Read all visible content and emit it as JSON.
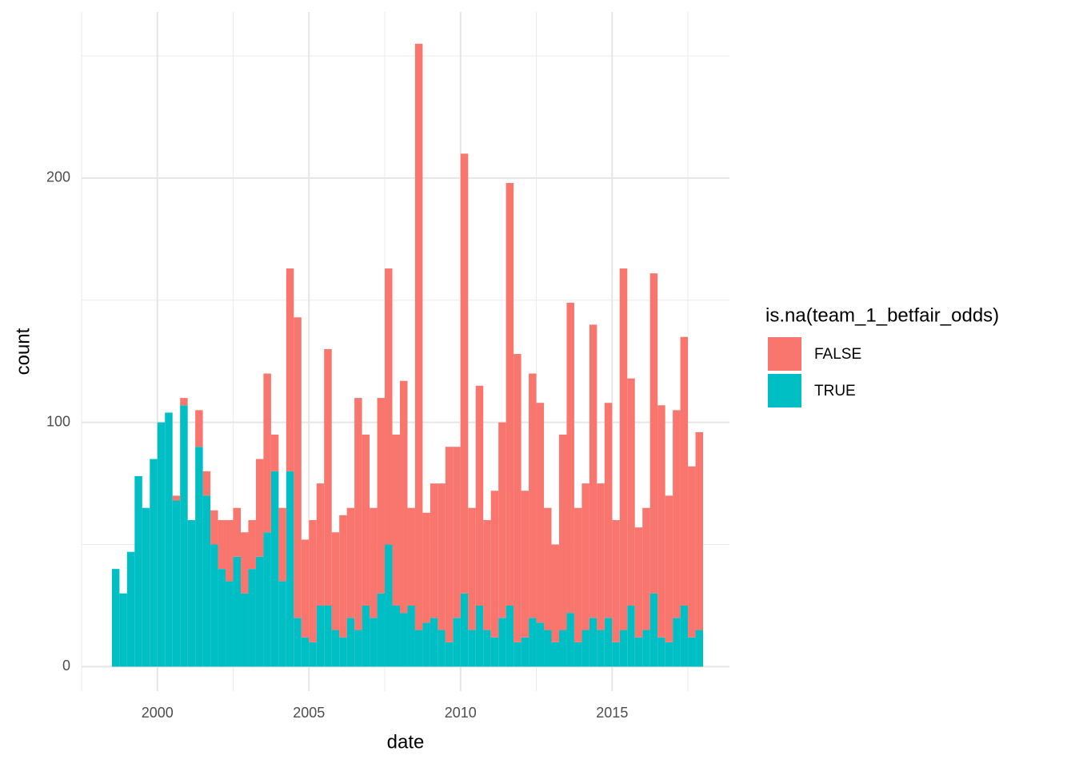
{
  "chart_data": {
    "type": "histogram",
    "x_label": "date",
    "y_label": "count",
    "legend_title": "is.na(team_1_betfair_odds)",
    "bins": [
      1998.5,
      1998.75,
      1999,
      1999.25,
      1999.5,
      1999.75,
      2000,
      2000.25,
      2000.5,
      2000.75,
      2001,
      2001.25,
      2001.5,
      2001.75,
      2002,
      2002.25,
      2002.5,
      2002.75,
      2003,
      2003.25,
      2003.5,
      2003.75,
      2004,
      2004.25,
      2004.5,
      2004.75,
      2005,
      2005.25,
      2005.5,
      2005.75,
      2006,
      2006.25,
      2006.5,
      2006.75,
      2007,
      2007.25,
      2007.5,
      2007.75,
      2008,
      2008.25,
      2008.5,
      2008.75,
      2009,
      2009.25,
      2009.5,
      2009.75,
      2010,
      2010.25,
      2010.5,
      2010.75,
      2011,
      2011.25,
      2011.5,
      2011.75,
      2012,
      2012.25,
      2012.5,
      2012.75,
      2013,
      2013.25,
      2013.5,
      2013.75,
      2014,
      2014.25,
      2014.5,
      2014.75,
      2015,
      2015.25,
      2015.5,
      2015.75,
      2016,
      2016.25,
      2016.5,
      2016.75,
      2017,
      2017.25,
      2017.5,
      2017.75,
      2018
    ],
    "series": [
      {
        "name": "TRUE",
        "color": "#00BFC4",
        "values": [
          40,
          30,
          47,
          78,
          65,
          85,
          100,
          104,
          68,
          107,
          60,
          90,
          70,
          50,
          40,
          35,
          45,
          30,
          40,
          45,
          55,
          80,
          35,
          80,
          20,
          12,
          10,
          25,
          25,
          15,
          12,
          20,
          15,
          25,
          20,
          30,
          50,
          25,
          22,
          25,
          15,
          18,
          20,
          15,
          10,
          20,
          30,
          15,
          25,
          15,
          12,
          20,
          25,
          10,
          12,
          20,
          18,
          15,
          10,
          15,
          22,
          10,
          15,
          20,
          15,
          20,
          10,
          15,
          25,
          12,
          15,
          30,
          12,
          10,
          20,
          25,
          12,
          15
        ]
      },
      {
        "name": "FALSE",
        "color": "#F8766D",
        "values": [
          0,
          0,
          0,
          0,
          0,
          0,
          0,
          0,
          2,
          3,
          0,
          15,
          10,
          14,
          20,
          25,
          20,
          25,
          20,
          40,
          65,
          15,
          30,
          83,
          123,
          40,
          50,
          50,
          105,
          40,
          50,
          45,
          95,
          70,
          45,
          80,
          113,
          70,
          95,
          40,
          240,
          45,
          55,
          60,
          80,
          70,
          180,
          50,
          90,
          45,
          60,
          80,
          173,
          118,
          60,
          100,
          90,
          50,
          40,
          80,
          127,
          55,
          60,
          120,
          60,
          88,
          50,
          148,
          93,
          45,
          50,
          131,
          95,
          60,
          85,
          110,
          70,
          81
        ]
      }
    ],
    "xlim": [
      1997.5,
      2018.87
    ],
    "ylim": [
      -10,
      268
    ],
    "xticks": [
      2000,
      2005,
      2010,
      2015
    ],
    "yticks": [
      0,
      100,
      200
    ],
    "grid": true
  }
}
